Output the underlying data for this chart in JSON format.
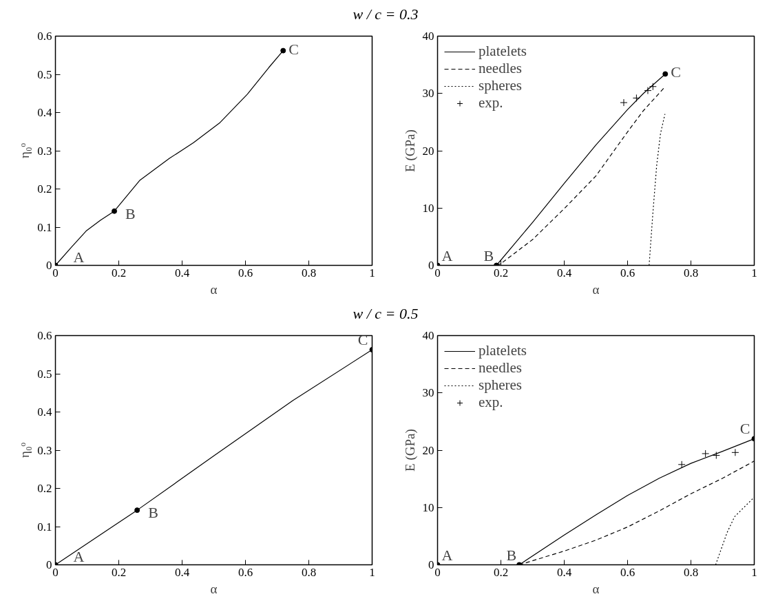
{
  "chart_data": [
    {
      "type": "line",
      "title": "w / c = 0.3",
      "xlabel": "α",
      "ylabel": "η₀ᵒ",
      "xlim": [
        0,
        1
      ],
      "ylim": [
        0,
        0.6
      ],
      "xticks": [
        0,
        0.2,
        0.4,
        0.6,
        0.8,
        1
      ],
      "yticks": [
        0,
        0.1,
        0.2,
        0.3,
        0.4,
        0.5,
        0.6
      ],
      "grid": false,
      "legend": false,
      "series": [
        {
          "color": "#000000",
          "line_style": "solid",
          "x": [
            0,
            0.05,
            0.097,
            0.142,
            0.186,
            0.267,
            0.36,
            0.436,
            0.52,
            0.606,
            0.674,
            0.719
          ],
          "values": [
            0,
            0.047,
            0.09,
            0.118,
            0.142,
            0.223,
            0.28,
            0.321,
            0.374,
            0.448,
            0.518,
            0.562
          ]
        },
        {
          "type": "scatter",
          "marker": "circle",
          "color": "#000000",
          "x": [
            0,
            0.186,
            0.719
          ],
          "values": [
            0,
            0.142,
            0.562
          ]
        }
      ],
      "annotations": [
        {
          "text": "A",
          "x": 0,
          "y": 0
        },
        {
          "text": "B",
          "x": 0.186,
          "y": 0.142
        },
        {
          "text": "C",
          "x": 0.719,
          "y": 0.562
        }
      ]
    },
    {
      "type": "line",
      "xlabel": "α",
      "ylabel": "E (GPa)",
      "xlim": [
        0,
        1
      ],
      "ylim": [
        0,
        40
      ],
      "xticks": [
        0,
        0.2,
        0.4,
        0.6,
        0.8,
        1
      ],
      "yticks": [
        0,
        10,
        20,
        30,
        40
      ],
      "grid": false,
      "legend": "top left",
      "series": [
        {
          "name": "platelets",
          "color": "#000000",
          "line_style": "solid",
          "x": [
            0.186,
            0.3,
            0.4,
            0.5,
            0.6,
            0.65,
            0.719
          ],
          "values": [
            0,
            7.5,
            14.3,
            21,
            27.2,
            30,
            33.4
          ]
        },
        {
          "name": "needles",
          "color": "#000000",
          "line_style": "dashed",
          "x": [
            0.186,
            0.2,
            0.3,
            0.4,
            0.5,
            0.6,
            0.65,
            0.719
          ],
          "values": [
            0,
            0.3,
            4.5,
            9.9,
            15.6,
            23.3,
            27,
            31.2
          ]
        },
        {
          "name": "spheres",
          "color": "#000000",
          "line_style": "dotted",
          "x": [
            0.668,
            0.68,
            0.692,
            0.704,
            0.718
          ],
          "values": [
            0,
            9.2,
            17.5,
            23,
            26.4
          ]
        },
        {
          "name": "exp.",
          "type": "scatter",
          "marker": "cross",
          "color": "#000000",
          "x": [
            0.588,
            0.628,
            0.664,
            0.68
          ],
          "values": [
            28.4,
            29.2,
            30.5,
            31.2
          ]
        },
        {
          "type": "scatter",
          "marker": "circle",
          "color": "#000000",
          "x": [
            0,
            0.186,
            0.719
          ],
          "values": [
            0,
            0,
            33.4
          ]
        }
      ],
      "annotations": [
        {
          "text": "A",
          "x": 0,
          "y": 0
        },
        {
          "text": "B",
          "x": 0.186,
          "y": 0
        },
        {
          "text": "C",
          "x": 0.719,
          "y": 33.4
        }
      ]
    },
    {
      "type": "line",
      "title": "w / c = 0.5",
      "xlabel": "α",
      "ylabel": "η₀ᵒ",
      "xlim": [
        0,
        1
      ],
      "ylim": [
        0,
        0.6
      ],
      "xticks": [
        0,
        0.2,
        0.4,
        0.6,
        0.8,
        1
      ],
      "yticks": [
        0,
        0.1,
        0.2,
        0.3,
        0.4,
        0.5,
        0.6
      ],
      "grid": false,
      "legend": false,
      "series": [
        {
          "color": "#000000",
          "line_style": "solid",
          "x": [
            0,
            0.258,
            0.5,
            0.75,
            1
          ],
          "values": [
            0,
            0.143,
            0.285,
            0.43,
            0.563
          ]
        },
        {
          "type": "scatter",
          "marker": "circle",
          "color": "#000000",
          "x": [
            0,
            0.258,
            1
          ],
          "values": [
            0,
            0.143,
            0.563
          ]
        }
      ],
      "annotations": [
        {
          "text": "A",
          "x": 0,
          "y": 0
        },
        {
          "text": "B",
          "x": 0.258,
          "y": 0.143
        },
        {
          "text": "C",
          "x": 1,
          "y": 0.563
        }
      ]
    },
    {
      "type": "line",
      "xlabel": "α",
      "ylabel": "E (GPa)",
      "xlim": [
        0,
        1
      ],
      "ylim": [
        0,
        40
      ],
      "xticks": [
        0,
        0.2,
        0.4,
        0.6,
        0.8,
        1
      ],
      "yticks": [
        0,
        10,
        20,
        30,
        40
      ],
      "grid": false,
      "legend": "top left",
      "series": [
        {
          "name": "platelets",
          "color": "#000000",
          "line_style": "solid",
          "x": [
            0.258,
            0.4,
            0.5,
            0.6,
            0.7,
            0.8,
            0.9,
            1
          ],
          "values": [
            0,
            5.2,
            8.7,
            12.1,
            15.1,
            17.7,
            19.8,
            22
          ]
        },
        {
          "name": "needles",
          "color": "#000000",
          "line_style": "dashed",
          "x": [
            0.258,
            0.4,
            0.5,
            0.6,
            0.7,
            0.8,
            0.9,
            1
          ],
          "values": [
            0,
            2.4,
            4.3,
            6.6,
            9.4,
            12.4,
            15.1,
            18.1
          ]
        },
        {
          "name": "spheres",
          "color": "#000000",
          "line_style": "dotted",
          "x": [
            0.878,
            0.914,
            0.938,
            1
          ],
          "values": [
            0,
            5.6,
            8.4,
            11.8
          ]
        },
        {
          "name": "exp.",
          "type": "scatter",
          "marker": "cross",
          "color": "#000000",
          "x": [
            0.771,
            0.846,
            0.88,
            0.94
          ],
          "values": [
            17.5,
            19.4,
            19.1,
            19.6
          ]
        },
        {
          "type": "scatter",
          "marker": "circle",
          "color": "#000000",
          "x": [
            0,
            0.258,
            1
          ],
          "values": [
            0,
            0,
            22
          ]
        }
      ],
      "annotations": [
        {
          "text": "A",
          "x": 0,
          "y": 0
        },
        {
          "text": "B",
          "x": 0.258,
          "y": 0
        },
        {
          "text": "C",
          "x": 1,
          "y": 22
        }
      ]
    }
  ]
}
